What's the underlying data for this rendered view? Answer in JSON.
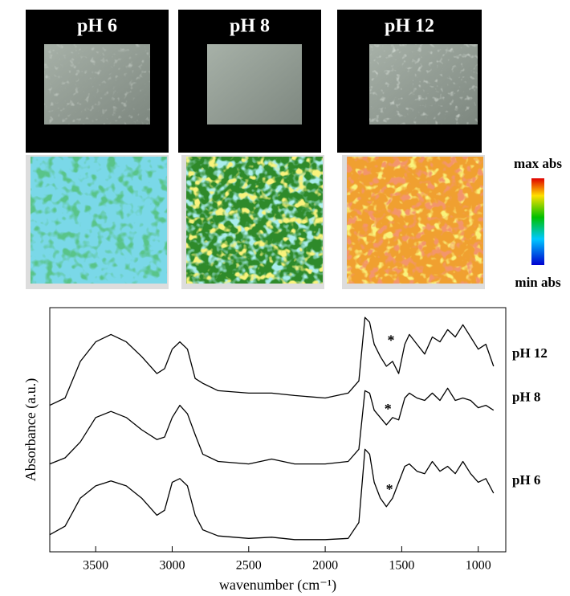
{
  "panels": [
    {
      "label": "pH 6"
    },
    {
      "label": "pH 8"
    },
    {
      "label": "pH 12"
    }
  ],
  "colorbar": {
    "max_label": "max abs",
    "min_label": "min abs"
  },
  "chart_data": {
    "type": "line",
    "x_label": "wavenumber (cm⁻¹)",
    "y_label": "Absorbance (a.u.)",
    "x": [
      3800,
      3700,
      3600,
      3500,
      3400,
      3300,
      3200,
      3100,
      3050,
      3000,
      2950,
      2900,
      2850,
      2800,
      2700,
      2500,
      2350,
      2200,
      2000,
      1850,
      1780,
      1740,
      1710,
      1680,
      1640,
      1600,
      1560,
      1520,
      1480,
      1450,
      1400,
      1350,
      1300,
      1250,
      1200,
      1150,
      1100,
      1050,
      1000,
      950,
      900
    ],
    "series": [
      {
        "name": "pH 12",
        "color": "#000000",
        "values": [
          6.0,
          6.3,
          7.8,
          8.6,
          8.9,
          8.6,
          8.0,
          7.3,
          7.5,
          8.3,
          8.6,
          8.3,
          7.1,
          6.9,
          6.6,
          6.5,
          6.5,
          6.4,
          6.3,
          6.5,
          7.0,
          9.6,
          9.4,
          8.5,
          8.0,
          7.6,
          7.8,
          7.3,
          8.5,
          8.9,
          8.5,
          8.1,
          8.8,
          8.6,
          9.1,
          8.8,
          9.3,
          8.8,
          8.3,
          8.5,
          7.6
        ]
      },
      {
        "name": "pH 8",
        "color": "#000000",
        "values": [
          3.6,
          3.85,
          4.5,
          5.5,
          5.75,
          5.5,
          5.0,
          4.6,
          4.7,
          5.5,
          6.0,
          5.65,
          4.8,
          4.0,
          3.7,
          3.6,
          3.8,
          3.6,
          3.6,
          3.7,
          4.2,
          6.6,
          6.5,
          5.8,
          5.5,
          5.2,
          5.5,
          5.4,
          6.3,
          6.5,
          6.3,
          6.2,
          6.5,
          6.2,
          6.7,
          6.2,
          6.3,
          6.2,
          5.9,
          6.0,
          5.8
        ]
      },
      {
        "name": "pH 6",
        "color": "#000000",
        "values": [
          0.7,
          1.05,
          2.2,
          2.7,
          2.9,
          2.7,
          2.2,
          1.5,
          1.7,
          2.85,
          3.0,
          2.7,
          1.5,
          0.9,
          0.65,
          0.55,
          0.6,
          0.5,
          0.5,
          0.55,
          1.2,
          4.2,
          4.0,
          2.85,
          2.2,
          1.85,
          2.2,
          2.85,
          3.5,
          3.6,
          3.3,
          3.2,
          3.7,
          3.3,
          3.5,
          3.2,
          3.7,
          3.2,
          2.85,
          3.0,
          2.4
        ]
      }
    ],
    "annotations": [
      {
        "text": "*",
        "x": 1570,
        "y": 8.6
      },
      {
        "text": "*",
        "x": 1590,
        "y": 5.8
      },
      {
        "text": "*",
        "x": 1580,
        "y": 2.5
      }
    ],
    "xlim": [
      3800,
      820
    ],
    "ylim": [
      0,
      10
    ],
    "xticks": [
      3500,
      3000,
      2500,
      2000,
      1500,
      1000
    ]
  }
}
